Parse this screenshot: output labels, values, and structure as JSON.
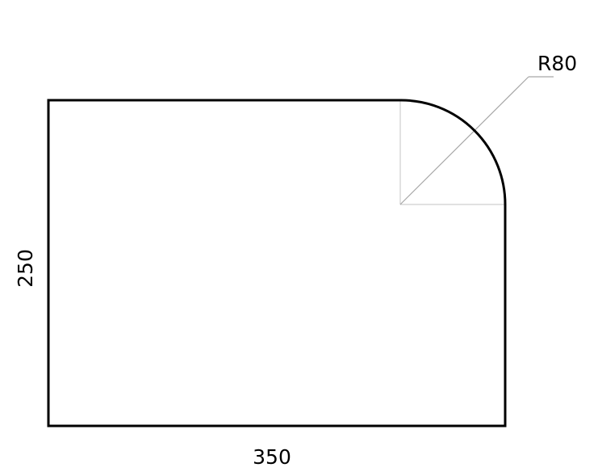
{
  "drawing": {
    "width_label": "350",
    "height_label": "250",
    "radius_label": "R80"
  },
  "colors": {
    "outline": "#000000",
    "construction": "#cfcfcf",
    "leader": "#a6a6a6"
  }
}
